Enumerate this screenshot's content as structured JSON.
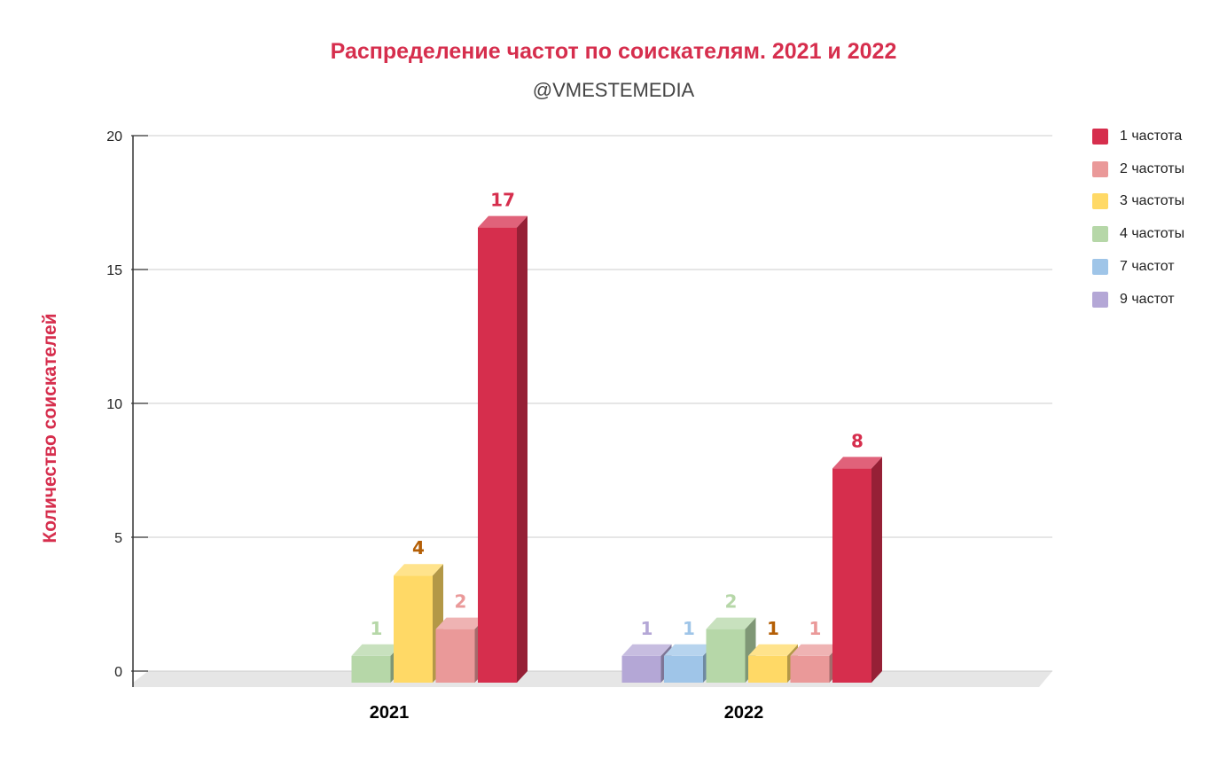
{
  "chart_data": {
    "type": "bar",
    "title": "Распределение частот по соискателям. 2021 и 2022",
    "subtitle": "@VMESTEMEDIA",
    "xlabel": "",
    "ylabel": "Количество соискателей",
    "ylim": [
      0,
      20
    ],
    "yticks": [
      0,
      5,
      10,
      15,
      20
    ],
    "grid": true,
    "legend_position": "right",
    "categories": [
      "2021",
      "2022"
    ],
    "series": [
      {
        "name": "9 частот",
        "color": "#b4a7d6",
        "values": [
          null,
          1
        ],
        "labels": [
          "",
          "1"
        ]
      },
      {
        "name": "7 частот",
        "color": "#9fc5e8",
        "values": [
          null,
          1
        ],
        "labels": [
          "",
          "1"
        ]
      },
      {
        "name": "4 частоты",
        "color": "#b6d7a8",
        "values": [
          1,
          2
        ],
        "labels": [
          "1",
          "2"
        ]
      },
      {
        "name": "3 частоты",
        "color": "#ffd966",
        "values": [
          4,
          1
        ],
        "labels": [
          "4",
          "1"
        ]
      },
      {
        "name": "2 частоты",
        "color": "#ea9999",
        "values": [
          2,
          1
        ],
        "labels": [
          "2",
          "1"
        ]
      },
      {
        "name": "1 частота",
        "color": "#d62e4d",
        "values": [
          17,
          8
        ],
        "labels": [
          "17",
          "8"
        ]
      }
    ]
  }
}
